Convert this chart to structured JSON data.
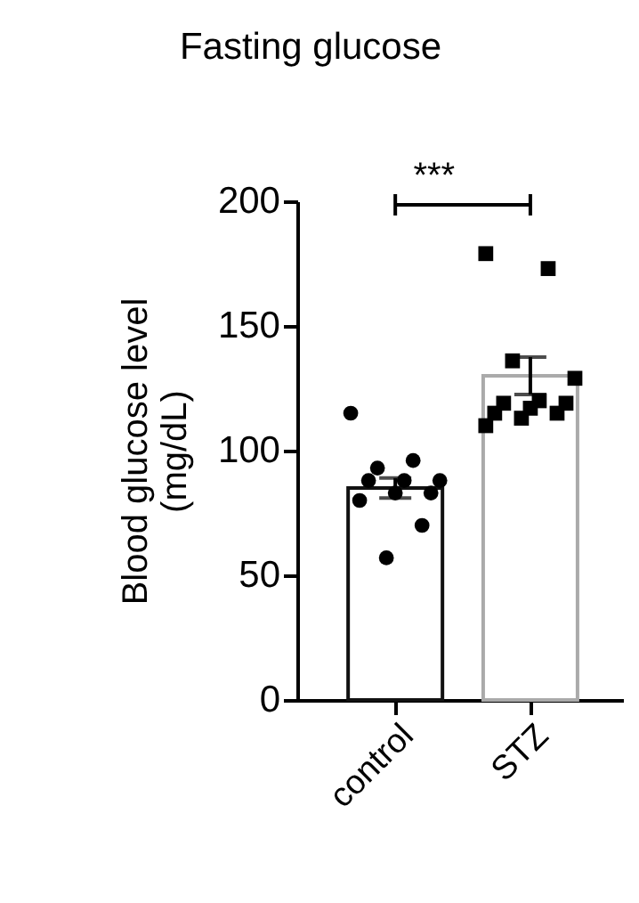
{
  "chart_data": {
    "type": "bar",
    "title": "Fasting glucose",
    "ylabel": "Blood glucose level\n(mg/dL)",
    "categories": [
      "control",
      "STZ"
    ],
    "ylim": [
      0,
      200
    ],
    "yticks": [
      0,
      50,
      100,
      150,
      200
    ],
    "grid": false,
    "annotations": [
      "***"
    ],
    "series": [
      {
        "values": [
          85,
          130
        ],
        "errors": [
          4,
          7.5
        ],
        "colors": [
          "#ffffff",
          "#ffffff"
        ]
      },
      {
        "type": "scatter",
        "marker": "circle",
        "color": "#000000",
        "x": [
          "control",
          "control",
          "control",
          "control",
          "control",
          "control",
          "control",
          "control",
          "control",
          "control",
          "control"
        ],
        "values": [
          115,
          96,
          93,
          88,
          88,
          88,
          83,
          83,
          80,
          70,
          57
        ]
      },
      {
        "type": "scatter",
        "marker": "square",
        "color": "#000000",
        "x": [
          "STZ",
          "STZ",
          "STZ",
          "STZ",
          "STZ",
          "STZ",
          "STZ",
          "STZ",
          "STZ",
          "STZ",
          "STZ",
          "STZ"
        ],
        "values": [
          179,
          173,
          136,
          129,
          120,
          119,
          119,
          117,
          115,
          115,
          113,
          110
        ]
      }
    ]
  }
}
